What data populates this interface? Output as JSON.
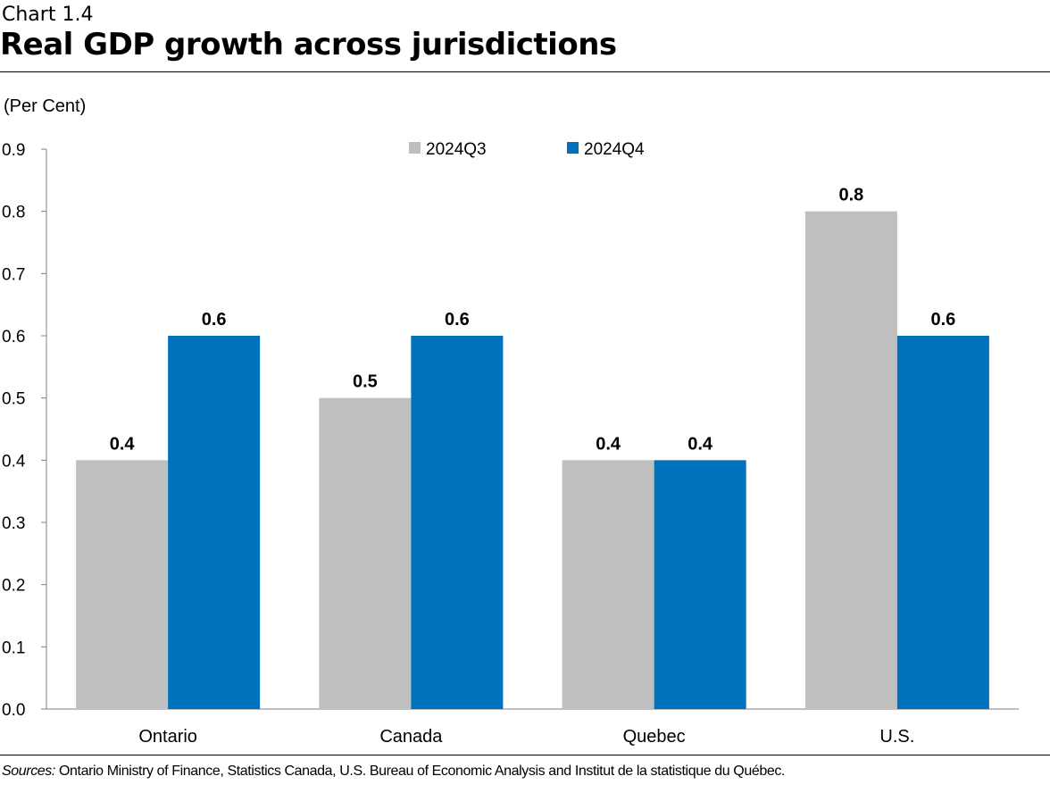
{
  "header": {
    "chart_number": "Chart 1.4",
    "title": "Real GDP growth across jurisdictions"
  },
  "unit_label": "(Per Cent)",
  "footer": {
    "sources_prefix": "Sources:",
    "sources_text": " Ontario Ministry of Finance, Statistics Canada, U.S. Bureau of Economic Analysis and Institut de la statistique du Québec."
  },
  "colors": {
    "q3": "#bfbfbf",
    "q4": "#0072bc"
  },
  "chart_data": {
    "type": "bar",
    "title": "Real GDP growth across jurisdictions",
    "xlabel": "",
    "ylabel": "(Per Cent)",
    "categories": [
      "Ontario",
      "Canada",
      "Quebec",
      "U.S."
    ],
    "series": [
      {
        "name": "2024Q3",
        "values": [
          0.4,
          0.5,
          0.4,
          0.8
        ],
        "labels": [
          "0.4",
          "0.5",
          "0.4",
          "0.8"
        ]
      },
      {
        "name": "2024Q4",
        "values": [
          0.6,
          0.6,
          0.4,
          0.6
        ],
        "labels": [
          "0.6",
          "0.6",
          "0.4",
          "0.6"
        ]
      }
    ],
    "ylim": [
      0,
      0.9
    ],
    "yticks": [
      "0.0",
      "0.1",
      "0.2",
      "0.3",
      "0.4",
      "0.5",
      "0.6",
      "0.7",
      "0.8",
      "0.9"
    ],
    "grid": false,
    "legend_position": "top-center"
  }
}
